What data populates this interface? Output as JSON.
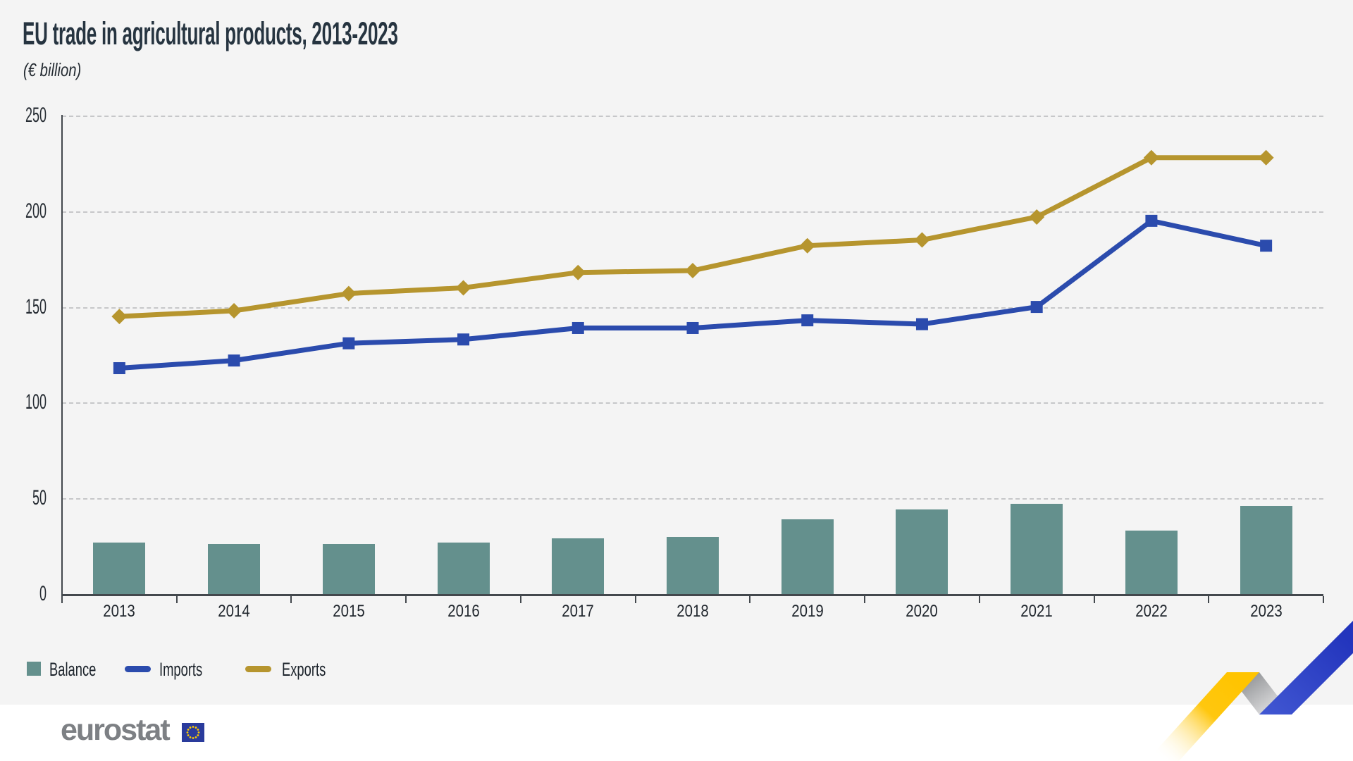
{
  "title": "EU trade in agricultural products, 2013-2023",
  "subtitle": "(€ billion)",
  "chart_data": {
    "type": "combo",
    "title": "EU trade in agricultural products, 2013-2023",
    "unit": "€ billion",
    "categories": [
      "2013",
      "2014",
      "2015",
      "2016",
      "2017",
      "2018",
      "2019",
      "2020",
      "2021",
      "2022",
      "2023"
    ],
    "series": [
      {
        "name": "Balance",
        "type": "bar",
        "color": "#64908D",
        "values": [
          27,
          26,
          26,
          27,
          29,
          30,
          39,
          44,
          47,
          33,
          46
        ]
      },
      {
        "name": "Imports",
        "type": "line",
        "marker": "square",
        "color": "#2B4BAD",
        "values": [
          118,
          122,
          131,
          133,
          139,
          139,
          143,
          141,
          150,
          195,
          182
        ]
      },
      {
        "name": "Exports",
        "type": "line",
        "marker": "diamond",
        "color": "#B6952E",
        "values": [
          145,
          148,
          157,
          160,
          168,
          169,
          182,
          185,
          197,
          228,
          228
        ]
      }
    ],
    "ylim": [
      0,
      250
    ],
    "yticks": [
      0,
      50,
      100,
      150,
      200,
      250
    ],
    "grid": "horizontal-dashed",
    "legend_position": "bottom-left"
  },
  "legend": {
    "balance_swatch": "balance-swatch",
    "imports_swatch": "imports-line-swatch",
    "exports_swatch": "exports-line-swatch"
  },
  "footer": {
    "logo_text": "eurostat",
    "flag_icon": "eu-flag-icon",
    "ribbon_icon": "trend-ribbon-graphic"
  },
  "colors": {
    "background": "#F4F4F4",
    "footer_background": "#FFFFFF",
    "axis": "#43484D",
    "gridline": "#C6C7C9",
    "balance_bar": "#64908D",
    "imports_line": "#2B4BAD",
    "exports_line": "#B6952E",
    "ribbon_yellow": "#FFC400",
    "ribbon_gray": "#8F9194",
    "ribbon_blue": "#2B44C8",
    "flag_blue": "#2A3B9C",
    "flag_stars": "#FFCC00",
    "logo_gray": "#7D8084"
  }
}
